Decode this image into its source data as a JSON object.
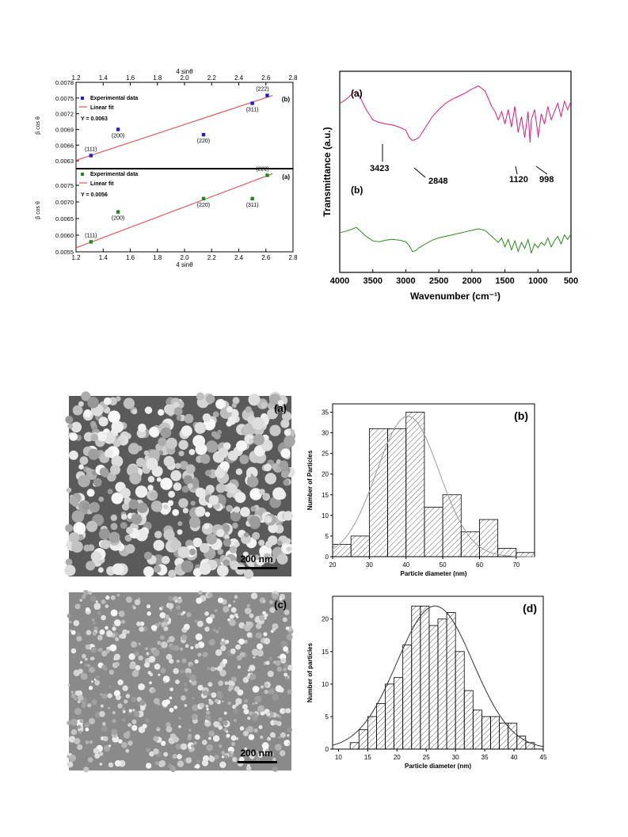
{
  "chart_data": [
    {
      "id": "wh-b",
      "type": "scatter",
      "panel_label": "(b)",
      "xlabel": "4 sinθ",
      "ylabel": "β cos θ",
      "xlim": [
        1.2,
        2.8
      ],
      "ylim": [
        0.00615,
        0.0078
      ],
      "x_ticks": [
        "1.2",
        "1.4",
        "1.6",
        "1.8",
        "2.0",
        "2.2",
        "2.4",
        "2.6",
        "2.8"
      ],
      "y_ticks": [
        "0.0063",
        "0.0066",
        "0.0069",
        "0.0072",
        "0.0075",
        "0.0078"
      ],
      "legend": {
        "points": "Experimental data",
        "fit": "Linear fit",
        "equation": "Y = 0.0063"
      },
      "points_color": "#1f1fcc",
      "fit_color": "#e05a5a",
      "series": [
        {
          "name": "Experimental data",
          "x": [
            1.31,
            1.51,
            2.14,
            2.5,
            2.61
          ],
          "y": [
            0.0064,
            0.0069,
            0.0068,
            0.0074,
            0.00755
          ],
          "labels": [
            "(111)",
            "(200)",
            "(220)",
            "(311)",
            "(222)"
          ]
        }
      ],
      "fit_line": {
        "x": [
          1.2,
          2.65
        ],
        "y": [
          0.00631,
          0.00755
        ]
      }
    },
    {
      "id": "wh-a",
      "type": "scatter",
      "panel_label": "(a)",
      "xlabel": "4 sinθ",
      "ylabel": "β cos θ",
      "xlim": [
        1.2,
        2.8
      ],
      "ylim": [
        0.0055,
        0.008
      ],
      "x_ticks": [
        "1.2",
        "1.4",
        "1.6",
        "1.8",
        "2.0",
        "2.2",
        "2.4",
        "2.6",
        "2.8"
      ],
      "y_ticks": [
        "0.0055",
        "0.0060",
        "0.0065",
        "0.0070",
        "0.0075"
      ],
      "legend": {
        "points": "Experimental data",
        "fit": "Linear fit",
        "equation": "Y = 0.0056"
      },
      "points_color": "#1a8a1a",
      "fit_color": "#e05a5a",
      "series": [
        {
          "name": "Experimental data",
          "x": [
            1.31,
            1.51,
            2.14,
            2.5,
            2.61
          ],
          "y": [
            0.0058,
            0.0067,
            0.0071,
            0.0071,
            0.0078
          ],
          "labels": [
            "(111)",
            "(200)",
            "(220)",
            "(311)",
            "(222)"
          ]
        }
      ],
      "fit_line": {
        "x": [
          1.2,
          2.65
        ],
        "y": [
          0.00562,
          0.00785
        ]
      }
    },
    {
      "id": "ftir",
      "type": "line",
      "xlabel": "Wavenumber (cm⁻¹)",
      "ylabel": "Transmittance (a.u.)",
      "xlim": [
        4000,
        500
      ],
      "x_ticks": [
        "4000",
        "3500",
        "3000",
        "2500",
        "2000",
        "1500",
        "1000",
        "500"
      ],
      "series": [
        {
          "name": "(a)",
          "color": "#e0197f",
          "x": [
            4000,
            3900,
            3800,
            3750,
            3700,
            3600,
            3500,
            3423,
            3300,
            3200,
            3100,
            3000,
            2950,
            2900,
            2848,
            2800,
            2700,
            2600,
            2500,
            2400,
            2300,
            2200,
            2100,
            2000,
            1900,
            1800,
            1700,
            1650,
            1600,
            1550,
            1500,
            1450,
            1400,
            1350,
            1300,
            1250,
            1200,
            1150,
            1120,
            1100,
            1050,
            1000,
            998,
            950,
            900,
            850,
            800,
            750,
            700,
            650,
            600,
            550,
            500
          ],
          "y": [
            0.78,
            0.82,
            0.88,
            0.9,
            0.85,
            0.72,
            0.62,
            0.6,
            0.58,
            0.57,
            0.55,
            0.52,
            0.45,
            0.42,
            0.43,
            0.45,
            0.55,
            0.65,
            0.72,
            0.78,
            0.82,
            0.85,
            0.88,
            0.92,
            0.95,
            0.9,
            0.75,
            0.7,
            0.62,
            0.7,
            0.58,
            0.72,
            0.55,
            0.75,
            0.5,
            0.65,
            0.45,
            0.7,
            0.4,
            0.62,
            0.72,
            0.48,
            0.45,
            0.68,
            0.58,
            0.75,
            0.62,
            0.7,
            0.78,
            0.65,
            0.8,
            0.72,
            0.8
          ]
        },
        {
          "name": "(b)",
          "color": "#2a8a1a",
          "x": [
            4000,
            3900,
            3800,
            3750,
            3700,
            3600,
            3500,
            3400,
            3300,
            3200,
            3100,
            3000,
            2950,
            2900,
            2850,
            2800,
            2700,
            2600,
            2500,
            2400,
            2300,
            2200,
            2100,
            2000,
            1900,
            1800,
            1700,
            1650,
            1600,
            1550,
            1500,
            1450,
            1400,
            1350,
            1300,
            1250,
            1200,
            1150,
            1100,
            1050,
            1000,
            950,
            900,
            850,
            800,
            750,
            700,
            650,
            600,
            550,
            500
          ],
          "y": [
            0.35,
            0.37,
            0.4,
            0.42,
            0.38,
            0.3,
            0.24,
            0.23,
            0.25,
            0.26,
            0.25,
            0.23,
            0.18,
            0.1,
            0.11,
            0.15,
            0.2,
            0.25,
            0.28,
            0.3,
            0.32,
            0.34,
            0.36,
            0.38,
            0.4,
            0.38,
            0.3,
            0.26,
            0.22,
            0.28,
            0.16,
            0.26,
            0.12,
            0.24,
            0.1,
            0.22,
            0.14,
            0.26,
            0.08,
            0.2,
            0.15,
            0.22,
            0.18,
            0.28,
            0.16,
            0.24,
            0.3,
            0.2,
            0.32,
            0.26,
            0.33
          ]
        }
      ],
      "annotations": [
        "(a)",
        "(b)",
        "3423",
        "2848",
        "1120",
        "998"
      ]
    },
    {
      "id": "hist-b",
      "type": "bar",
      "panel_label": "(b)",
      "xlabel": "Particle diameter (nm)",
      "ylabel": "Number of Particles",
      "xlim": [
        20,
        75
      ],
      "ylim": [
        0,
        37
      ],
      "x_ticks": [
        "20",
        "30",
        "40",
        "50",
        "60",
        "70"
      ],
      "y_ticks": [
        "0",
        "5",
        "10",
        "15",
        "20",
        "25",
        "30",
        "35"
      ],
      "bin_width": 5,
      "bin_starts": [
        20,
        25,
        30,
        35,
        40,
        45,
        50,
        55,
        60,
        65,
        70
      ],
      "values": [
        3,
        5,
        31,
        31,
        35,
        12,
        15,
        6,
        9,
        2,
        1
      ],
      "fit": {
        "type": "gaussian",
        "mean": 40.5,
        "sigma": 8.5,
        "peak": 34,
        "color": "#999999"
      }
    },
    {
      "id": "hist-d",
      "type": "bar",
      "panel_label": "(d)",
      "xlabel": "Particle diameter (nm)",
      "ylabel": "Number of particles",
      "xlim": [
        9,
        45
      ],
      "ylim": [
        0,
        23.5
      ],
      "x_ticks": [
        "10",
        "15",
        "20",
        "25",
        "30",
        "35",
        "40",
        "45"
      ],
      "y_ticks": [
        "0",
        "5",
        "10",
        "15",
        "20"
      ],
      "bin_width": 1.5,
      "bin_starts": [
        12,
        13.5,
        15,
        16.5,
        18,
        19.5,
        21,
        22.5,
        24,
        25.5,
        27,
        28.5,
        30,
        31.5,
        33,
        34.5,
        36,
        37.5,
        39,
        40.5,
        42
      ],
      "values": [
        1,
        3,
        5,
        7,
        10,
        11,
        16,
        22,
        22,
        19,
        20,
        21,
        15,
        9,
        6,
        5,
        5,
        4,
        4,
        2,
        1
      ],
      "fit": {
        "type": "gaussian",
        "mean": 26.5,
        "sigma": 6.5,
        "peak": 22,
        "color": "#333333"
      }
    }
  ],
  "sem": [
    {
      "panel_label": "(a)",
      "scale_bar": "200 nm"
    },
    {
      "panel_label": "(c)",
      "scale_bar": "200 nm"
    }
  ]
}
